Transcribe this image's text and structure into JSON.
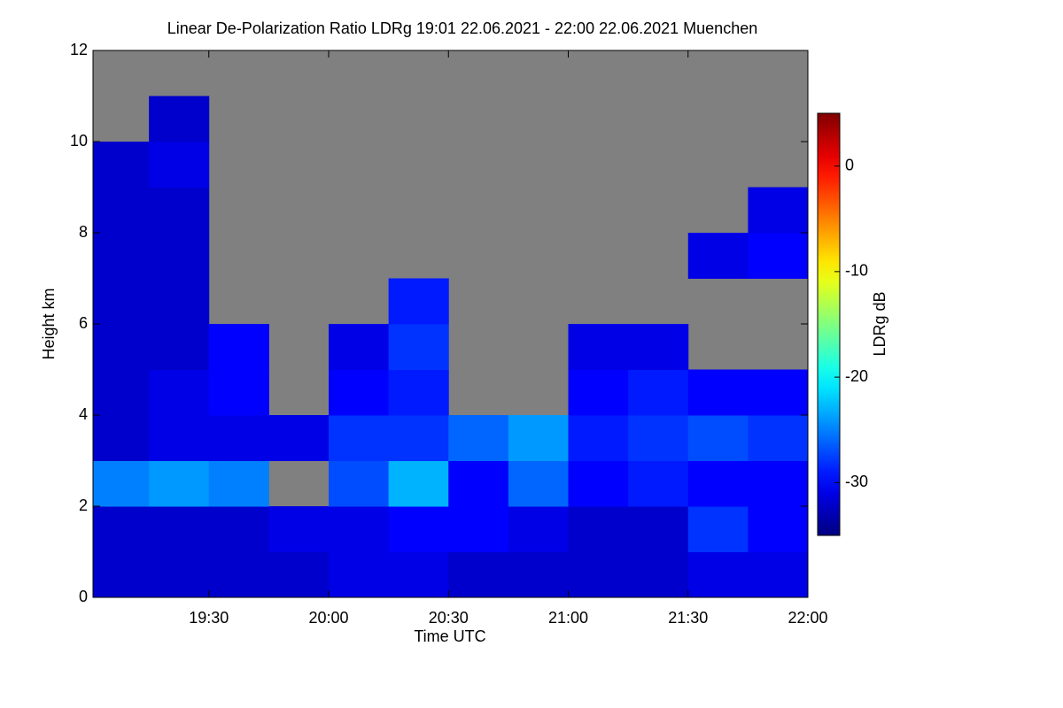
{
  "chart_data": {
    "type": "heatmap",
    "title": "Linear De-Polarization Ratio LDRg   19:01 22.06.2021 - 22:00 22.06.2021 Muenchen",
    "x_label": "Time UTC",
    "y_label": "Height km",
    "colorbar_label": "LDRg dB",
    "xlim": [
      1141,
      1320
    ],
    "xticks": [
      {
        "value": 1170,
        "label": "19:30"
      },
      {
        "value": 1200,
        "label": "20:00"
      },
      {
        "value": 1230,
        "label": "20:30"
      },
      {
        "value": 1260,
        "label": "21:00"
      },
      {
        "value": 1290,
        "label": "21:30"
      },
      {
        "value": 1320,
        "label": "22:00"
      }
    ],
    "ylim": [
      0,
      12
    ],
    "yticks": [
      0,
      2,
      4,
      6,
      8,
      10,
      12
    ],
    "zlim": [
      -35,
      5
    ],
    "zticks": [
      0,
      -10,
      -20,
      -30
    ],
    "missing_color": "#808080",
    "xbins": [
      1141,
      1155,
      1170,
      1185,
      1200,
      1215,
      1230,
      1245,
      1260,
      1275,
      1290,
      1305,
      1320
    ],
    "ybins": [
      0,
      1,
      2,
      3,
      4,
      5,
      6,
      7,
      8,
      9,
      10,
      11,
      12
    ],
    "z": [
      [
        -32,
        -32,
        -32,
        -32,
        -31,
        -31,
        -32,
        -32,
        -32,
        -32,
        -31,
        -31
      ],
      [
        -32,
        -32,
        -32,
        -31,
        -31,
        -30,
        -30,
        -31,
        -32,
        -32,
        -28,
        -30
      ],
      [
        -25,
        -24,
        -25,
        null,
        -27,
        -23,
        -30,
        -26,
        -30,
        -29,
        -30,
        -30
      ],
      [
        -32,
        -31,
        -31,
        -31,
        -28,
        -28,
        -26,
        -24,
        -29,
        -28,
        -27,
        -28
      ],
      [
        -32,
        -31,
        -30,
        null,
        -30,
        -29,
        null,
        null,
        -30,
        -29,
        -30,
        -30
      ],
      [
        -32,
        -32,
        -30,
        null,
        -31,
        -28,
        null,
        null,
        -31,
        -31,
        null,
        null
      ],
      [
        -32,
        -32,
        null,
        null,
        null,
        -29,
        null,
        null,
        null,
        null,
        null,
        null
      ],
      [
        -32,
        -32,
        null,
        null,
        null,
        null,
        null,
        null,
        null,
        null,
        -31,
        -30
      ],
      [
        -32,
        -32,
        null,
        null,
        null,
        null,
        null,
        null,
        null,
        null,
        null,
        -31
      ],
      [
        -32,
        -31,
        null,
        null,
        null,
        null,
        null,
        null,
        null,
        null,
        null,
        null
      ],
      [
        null,
        -32,
        null,
        null,
        null,
        null,
        null,
        null,
        null,
        null,
        null,
        null
      ],
      [
        null,
        null,
        null,
        null,
        null,
        null,
        null,
        null,
        null,
        null,
        null,
        null
      ]
    ]
  }
}
